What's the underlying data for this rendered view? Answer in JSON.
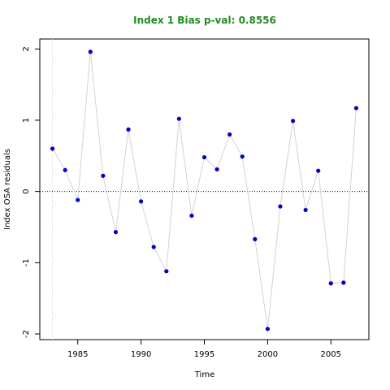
{
  "chart_data": {
    "type": "scatter",
    "title": "Index 1 Bias p-val: 0.8556",
    "title_color": "#228B22",
    "xlabel": "Time",
    "ylabel": "Index OSA residuals",
    "xlim": [
      1982.0,
      2008.0
    ],
    "ylim": [
      -2.08,
      2.14
    ],
    "xticks": [
      1985,
      1990,
      1995,
      2000,
      2005
    ],
    "xtick_labels": [
      "1985",
      "1990",
      "1995",
      "2000",
      "2005"
    ],
    "yticks": [
      -2,
      -1,
      0,
      1,
      2
    ],
    "ytick_labels": [
      "-2",
      "-1",
      "0",
      "1",
      "2"
    ],
    "reference_hline": 0,
    "reference_vline": 1983,
    "point_color": "#0000CD",
    "line_color": "#d3d3d3",
    "grid": false,
    "series": [
      {
        "x": [
          1983,
          1984,
          1985,
          1986,
          1987,
          1988,
          1989,
          1990,
          1991,
          1992,
          1993,
          1994,
          1995,
          1996,
          1997,
          1998,
          1999,
          2000,
          2001,
          2002,
          2003,
          2004,
          2005,
          2006,
          2007
        ],
        "y": [
          0.6,
          0.3,
          -0.12,
          1.96,
          0.22,
          -0.57,
          0.87,
          -0.14,
          -0.78,
          -1.12,
          1.02,
          -0.34,
          0.48,
          0.31,
          0.8,
          0.49,
          -0.67,
          -1.93,
          -0.21,
          0.99,
          -0.26,
          0.29,
          -1.29,
          -1.28,
          1.17
        ]
      }
    ]
  }
}
